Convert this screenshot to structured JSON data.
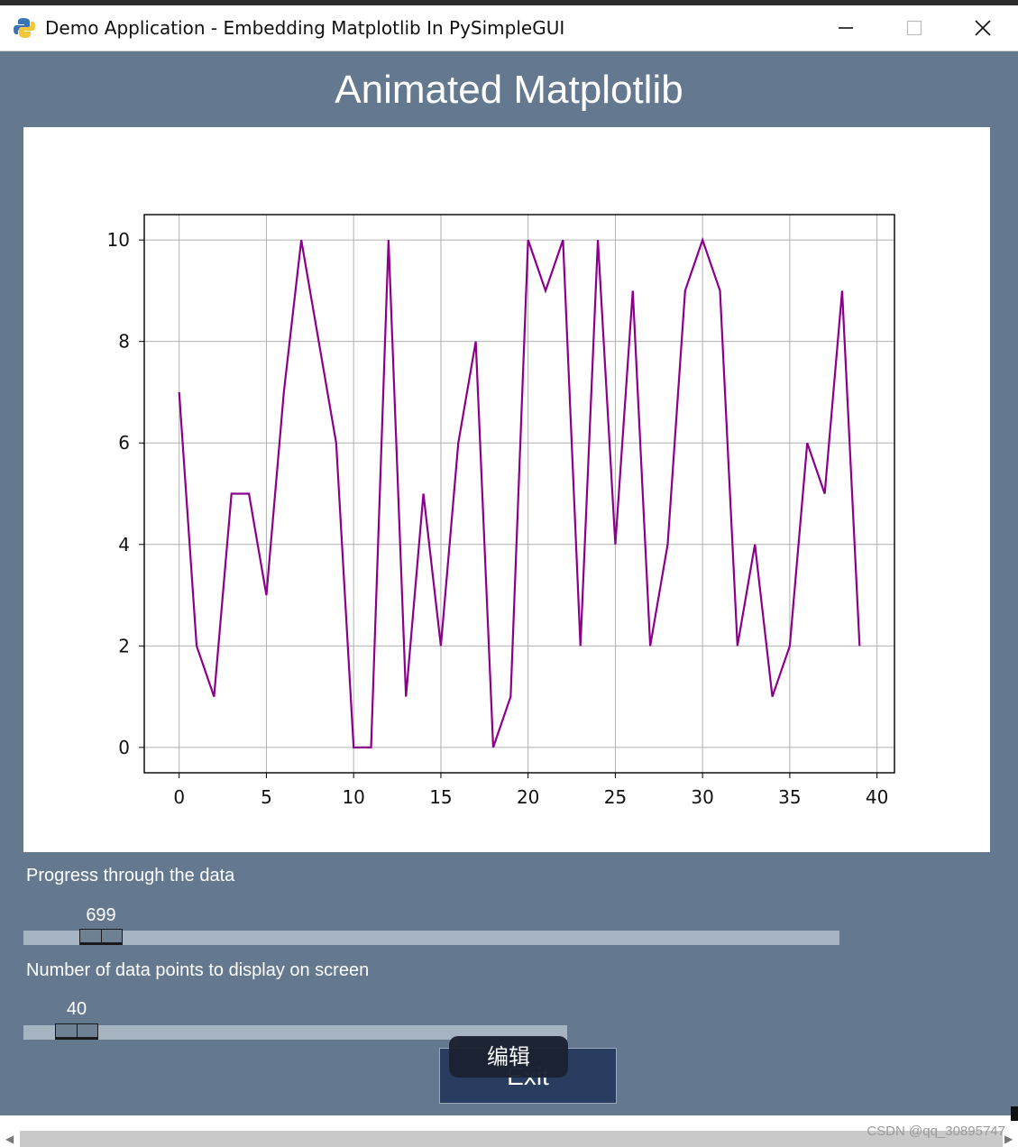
{
  "window": {
    "title": "Demo Application - Embedding Matplotlib In PySimpleGUI",
    "minimize_icon": "minimize-icon",
    "maximize_icon": "maximize-icon",
    "close_icon": "close-icon",
    "app_icon": "python-logo-icon"
  },
  "main": {
    "title": "Animated Matplotlib"
  },
  "chart_data": {
    "type": "line",
    "title": "",
    "xlabel": "",
    "ylabel": "",
    "x": [
      0,
      1,
      2,
      3,
      4,
      5,
      6,
      7,
      8,
      9,
      10,
      11,
      12,
      13,
      14,
      15,
      16,
      17,
      18,
      19,
      20,
      21,
      22,
      23,
      24,
      25,
      26,
      27,
      28,
      29,
      30,
      31,
      32,
      33,
      34,
      35,
      36,
      37,
      38,
      39
    ],
    "series": [
      {
        "values": [
          7,
          2,
          1,
          5,
          5,
          3,
          7,
          10,
          8,
          6,
          0,
          0,
          10,
          1,
          5,
          2,
          6,
          8,
          0,
          1,
          10,
          9,
          10,
          2,
          10,
          4,
          9,
          2,
          4,
          9,
          10,
          9,
          2,
          4,
          1,
          2,
          6,
          5,
          9,
          2
        ],
        "color": "#8b008b"
      }
    ],
    "xlim": [
      -2,
      41
    ],
    "ylim": [
      -0.5,
      10.5
    ],
    "xticks": [
      "0",
      "5",
      "10",
      "15",
      "20",
      "25",
      "30",
      "35",
      "40"
    ],
    "yticks": [
      "0",
      "2",
      "4",
      "6",
      "8",
      "10"
    ],
    "grid": true
  },
  "controls": {
    "progress_label": "Progress through the data",
    "progress_value": "699",
    "points_label": "Number of data points to display on screen",
    "points_value": "40",
    "exit_label": "Exit",
    "tooltip_label": "编辑"
  },
  "footer": {
    "watermark": "CSDN @qq_30895747"
  }
}
